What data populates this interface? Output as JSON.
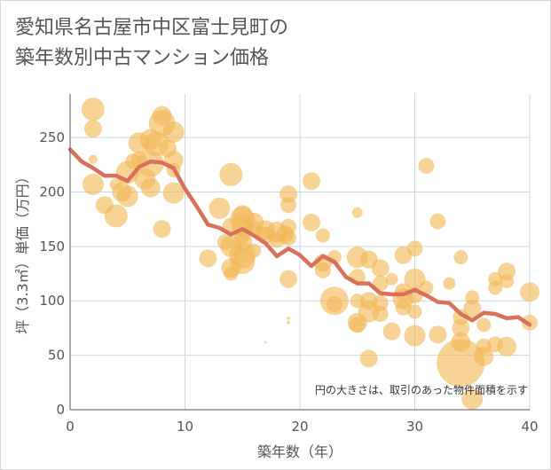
{
  "title_lines": [
    "愛知県名古屋市中区富士見町の",
    "築年数別中古マンション価格"
  ],
  "chart_data": {
    "type": "scatter",
    "title": "愛知県名古屋市中区富士見町の築年数別中古マンション価格",
    "xlabel": "築年数（年）",
    "ylabel": "坪（3.3㎡）単価（万円）",
    "xlim": [
      0,
      40
    ],
    "ylim": [
      0,
      290
    ],
    "xticks": [
      0,
      10,
      20,
      30,
      40
    ],
    "yticks": [
      0,
      50,
      100,
      150,
      200,
      250
    ],
    "grid": true,
    "annotation": "円の大きさは、取引のあった物件面積を示す",
    "colors": {
      "bubble": "#f2b856",
      "line": "#d9705a",
      "grid": "#c9d7e6"
    },
    "points": [
      {
        "x": 2,
        "y": 276,
        "s": 13
      },
      {
        "x": 2,
        "y": 258,
        "s": 10
      },
      {
        "x": 2,
        "y": 230,
        "s": 5
      },
      {
        "x": 2,
        "y": 207,
        "s": 12
      },
      {
        "x": 3,
        "y": 188,
        "s": 10
      },
      {
        "x": 4,
        "y": 178,
        "s": 13
      },
      {
        "x": 4,
        "y": 207,
        "s": 7
      },
      {
        "x": 4.5,
        "y": 200,
        "s": 11
      },
      {
        "x": 5,
        "y": 218,
        "s": 13
      },
      {
        "x": 5,
        "y": 196,
        "s": 12
      },
      {
        "x": 5.5,
        "y": 228,
        "s": 9
      },
      {
        "x": 6,
        "y": 245,
        "s": 12
      },
      {
        "x": 6,
        "y": 230,
        "s": 9
      },
      {
        "x": 6.5,
        "y": 212,
        "s": 12
      },
      {
        "x": 7,
        "y": 248,
        "s": 12
      },
      {
        "x": 7,
        "y": 226,
        "s": 15
      },
      {
        "x": 7,
        "y": 204,
        "s": 11
      },
      {
        "x": 7.5,
        "y": 244,
        "s": 14
      },
      {
        "x": 8,
        "y": 270,
        "s": 11
      },
      {
        "x": 8,
        "y": 263,
        "s": 15
      },
      {
        "x": 8,
        "y": 166,
        "s": 10
      },
      {
        "x": 8.5,
        "y": 240,
        "s": 10
      },
      {
        "x": 9,
        "y": 255,
        "s": 12
      },
      {
        "x": 9,
        "y": 229,
        "s": 11
      },
      {
        "x": 9,
        "y": 220,
        "s": 8
      },
      {
        "x": 9,
        "y": 199,
        "s": 12
      },
      {
        "x": 12,
        "y": 139,
        "s": 10
      },
      {
        "x": 13,
        "y": 185,
        "s": 12
      },
      {
        "x": 13.5,
        "y": 154,
        "s": 9
      },
      {
        "x": 14,
        "y": 216,
        "s": 13
      },
      {
        "x": 14,
        "y": 168,
        "s": 10
      },
      {
        "x": 14,
        "y": 150,
        "s": 12
      },
      {
        "x": 14,
        "y": 130,
        "s": 11
      },
      {
        "x": 14,
        "y": 125,
        "s": 8
      },
      {
        "x": 15,
        "y": 179,
        "s": 11
      },
      {
        "x": 15,
        "y": 175,
        "s": 14
      },
      {
        "x": 15,
        "y": 168,
        "s": 12
      },
      {
        "x": 15,
        "y": 160,
        "s": 9
      },
      {
        "x": 15,
        "y": 154,
        "s": 11
      },
      {
        "x": 15,
        "y": 142,
        "s": 15
      },
      {
        "x": 15,
        "y": 136,
        "s": 14
      },
      {
        "x": 16,
        "y": 172,
        "s": 11
      },
      {
        "x": 16,
        "y": 166,
        "s": 9
      },
      {
        "x": 16,
        "y": 146,
        "s": 8
      },
      {
        "x": 17,
        "y": 165,
        "s": 11
      },
      {
        "x": 17,
        "y": 160,
        "s": 10
      },
      {
        "x": 18,
        "y": 163,
        "s": 12
      },
      {
        "x": 18,
        "y": 156,
        "s": 9
      },
      {
        "x": 18.7,
        "y": 161,
        "s": 10
      },
      {
        "x": 19,
        "y": 198,
        "s": 10
      },
      {
        "x": 19,
        "y": 188,
        "s": 9
      },
      {
        "x": 19,
        "y": 168,
        "s": 9
      },
      {
        "x": 19,
        "y": 158,
        "s": 9
      },
      {
        "x": 19,
        "y": 120,
        "s": 10
      },
      {
        "x": 19,
        "y": 84,
        "s": 2
      },
      {
        "x": 19,
        "y": 80,
        "s": 2
      },
      {
        "x": 17,
        "y": 62,
        "s": 1.5
      },
      {
        "x": 21,
        "y": 210,
        "s": 10
      },
      {
        "x": 21,
        "y": 172,
        "s": 10
      },
      {
        "x": 22,
        "y": 160,
        "s": 8
      },
      {
        "x": 22,
        "y": 135,
        "s": 10
      },
      {
        "x": 22,
        "y": 128,
        "s": 9
      },
      {
        "x": 23,
        "y": 140,
        "s": 8
      },
      {
        "x": 23,
        "y": 100,
        "s": 16
      },
      {
        "x": 23,
        "y": 97,
        "s": 9
      },
      {
        "x": 25,
        "y": 181,
        "s": 6
      },
      {
        "x": 25,
        "y": 140,
        "s": 12
      },
      {
        "x": 25,
        "y": 122,
        "s": 9
      },
      {
        "x": 25,
        "y": 100,
        "s": 8
      },
      {
        "x": 25,
        "y": 80,
        "s": 11
      },
      {
        "x": 25,
        "y": 78,
        "s": 9
      },
      {
        "x": 26,
        "y": 138,
        "s": 10
      },
      {
        "x": 26,
        "y": 100,
        "s": 10
      },
      {
        "x": 26,
        "y": 90,
        "s": 12
      },
      {
        "x": 26,
        "y": 47,
        "s": 10
      },
      {
        "x": 27,
        "y": 130,
        "s": 10
      },
      {
        "x": 27,
        "y": 116,
        "s": 9
      },
      {
        "x": 27,
        "y": 98,
        "s": 9
      },
      {
        "x": 27,
        "y": 88,
        "s": 9
      },
      {
        "x": 28,
        "y": 120,
        "s": 7
      },
      {
        "x": 28,
        "y": 72,
        "s": 10
      },
      {
        "x": 29,
        "y": 142,
        "s": 10
      },
      {
        "x": 29,
        "y": 108,
        "s": 10
      },
      {
        "x": 29,
        "y": 102,
        "s": 12
      },
      {
        "x": 29,
        "y": 94,
        "s": 9
      },
      {
        "x": 30,
        "y": 148,
        "s": 9
      },
      {
        "x": 30,
        "y": 120,
        "s": 12
      },
      {
        "x": 30,
        "y": 105,
        "s": 9
      },
      {
        "x": 30,
        "y": 90,
        "s": 8
      },
      {
        "x": 30,
        "y": 68,
        "s": 12
      },
      {
        "x": 31,
        "y": 224,
        "s": 9
      },
      {
        "x": 31,
        "y": 112,
        "s": 8
      },
      {
        "x": 32,
        "y": 173,
        "s": 9
      },
      {
        "x": 32,
        "y": 69,
        "s": 10
      },
      {
        "x": 33,
        "y": 116,
        "s": 7
      },
      {
        "x": 34,
        "y": 140,
        "s": 8
      },
      {
        "x": 34,
        "y": 85,
        "s": 9
      },
      {
        "x": 34,
        "y": 75,
        "s": 10
      },
      {
        "x": 34,
        "y": 62,
        "s": 11
      },
      {
        "x": 34,
        "y": 43,
        "s": 27
      },
      {
        "x": 35,
        "y": 103,
        "s": 8
      },
      {
        "x": 35,
        "y": 93,
        "s": 10
      },
      {
        "x": 35,
        "y": 10,
        "s": 12
      },
      {
        "x": 36,
        "y": 78,
        "s": 8
      },
      {
        "x": 36,
        "y": 58,
        "s": 9
      },
      {
        "x": 36,
        "y": 49,
        "s": 11
      },
      {
        "x": 37,
        "y": 120,
        "s": 8
      },
      {
        "x": 37,
        "y": 112,
        "s": 8
      },
      {
        "x": 37,
        "y": 60,
        "s": 9
      },
      {
        "x": 38,
        "y": 127,
        "s": 10
      },
      {
        "x": 38,
        "y": 118,
        "s": 8
      },
      {
        "x": 38,
        "y": 58,
        "s": 11
      },
      {
        "x": 40,
        "y": 108,
        "s": 11
      },
      {
        "x": 40,
        "y": 80,
        "s": 9
      }
    ],
    "trend": {
      "x": [
        0,
        1,
        2,
        3,
        4,
        5,
        6,
        7,
        8,
        9,
        10,
        11,
        12,
        13,
        14,
        15,
        16,
        17,
        18,
        19,
        20,
        21,
        22,
        23,
        24,
        25,
        26,
        27,
        28,
        29,
        30,
        31,
        32,
        33,
        34,
        35,
        36,
        37,
        38,
        39,
        40
      ],
      "y": [
        239,
        228,
        222,
        215,
        215,
        210,
        223,
        228,
        227,
        222,
        203,
        187,
        170,
        167,
        161,
        166,
        160,
        153,
        141,
        148,
        142,
        132,
        141,
        136,
        122,
        116,
        116,
        107,
        106,
        106,
        110,
        105,
        99,
        98,
        88,
        82,
        89,
        88,
        84,
        85,
        78
      ]
    }
  }
}
